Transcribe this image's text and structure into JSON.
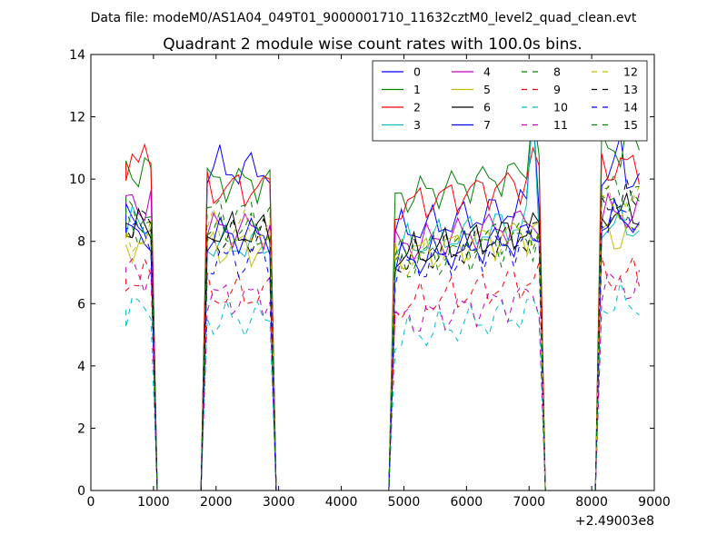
{
  "suptitle": "Data file: modeM0/AS1A04_049T01_9000001710_11632cztM0_level2_quad_clean.evt",
  "chart_data": {
    "type": "line",
    "title": "Quadrant 2 module wise count rates with 100.0s bins.",
    "xlabel": "",
    "ylabel": "",
    "xlim": [
      0,
      9000
    ],
    "ylim": [
      0,
      14
    ],
    "xticks": [
      0,
      1000,
      2000,
      3000,
      4000,
      5000,
      6000,
      7000,
      8000,
      9000
    ],
    "xtick_labels": [
      "0",
      "1000",
      "2000",
      "3000",
      "4000",
      "5000",
      "6000",
      "7000",
      "8000",
      "9000"
    ],
    "yticks": [
      0,
      2,
      4,
      6,
      8,
      10,
      12,
      14
    ],
    "ytick_labels": [
      "0",
      "2",
      "4",
      "6",
      "8",
      "10",
      "12",
      "14"
    ],
    "x_offset_label": "+2.49003e8",
    "grid": false,
    "legend_position": "top-right",
    "legend_columns": 4,
    "segments": [
      {
        "start": 560,
        "end": 1000
      },
      {
        "start": 1860,
        "end": 2860
      },
      {
        "start": 4860,
        "end": 7160
      },
      {
        "start": 8160,
        "end": 8760
      }
    ],
    "gap_x_points": [
      1060,
      1760,
      2960,
      4760,
      7260,
      8060
    ],
    "series": [
      {
        "name": "0",
        "color": "#0000ff",
        "style": "solid",
        "levels": [
          8.6,
          10.3,
          8.7,
          10.0
        ],
        "peaks": [
          {
            "x": 2060,
            "y": 11.1
          },
          {
            "x": 7060,
            "y": 12.2
          },
          {
            "x": 8460,
            "y": 11.4
          }
        ]
      },
      {
        "name": "1",
        "color": "#008000",
        "style": "solid",
        "levels": [
          10.3,
          9.9,
          9.8,
          10.9
        ],
        "peaks": [
          {
            "x": 7060,
            "y": 12.3
          },
          {
            "x": 8560,
            "y": 11.8
          }
        ]
      },
      {
        "name": "2",
        "color": "#ff0000",
        "style": "solid",
        "levels": [
          10.5,
          9.7,
          9.5,
          10.4
        ],
        "peaks": [
          {
            "x": 660,
            "y": 10.8
          },
          {
            "x": 7060,
            "y": 11.0
          }
        ]
      },
      {
        "name": "3",
        "color": "#00bfbf",
        "style": "solid",
        "levels": [
          8.5,
          7.9,
          8.2,
          8.5
        ],
        "peaks": [
          {
            "x": 7060,
            "y": 12.3
          }
        ]
      },
      {
        "name": "4",
        "color": "#bf00bf",
        "style": "solid",
        "levels": [
          9.2,
          8.4,
          8.2,
          8.9
        ],
        "peaks": [
          {
            "x": 660,
            "y": 9.5
          }
        ]
      },
      {
        "name": "5",
        "color": "#bfbf00",
        "style": "solid",
        "levels": [
          7.9,
          7.8,
          7.9,
          8.2
        ],
        "peaks": []
      },
      {
        "name": "6",
        "color": "#000000",
        "style": "solid",
        "levels": [
          8.4,
          8.3,
          7.9,
          8.9
        ],
        "peaks": []
      },
      {
        "name": "7",
        "color": "#0000ff",
        "style": "solid",
        "levels": [
          8.2,
          8.2,
          7.7,
          8.7
        ],
        "peaks": []
      },
      {
        "name": "8",
        "color": "#008000",
        "style": "dashed",
        "levels": [
          8.5,
          8.9,
          7.6,
          9.1
        ],
        "peaks": []
      },
      {
        "name": "9",
        "color": "#ff0000",
        "style": "dashed",
        "levels": [
          6.8,
          6.3,
          6.3,
          6.9
        ],
        "peaks": []
      },
      {
        "name": "10",
        "color": "#00bfbf",
        "style": "dashed",
        "levels": [
          5.8,
          5.5,
          5.3,
          6.0
        ],
        "peaks": []
      },
      {
        "name": "11",
        "color": "#bf00bf",
        "style": "dashed",
        "levels": [
          7.0,
          6.2,
          5.8,
          6.6
        ],
        "peaks": []
      },
      {
        "name": "12",
        "color": "#bfbf00",
        "style": "dashed",
        "levels": [
          8.1,
          8.4,
          7.7,
          9.2
        ],
        "peaks": []
      },
      {
        "name": "13",
        "color": "#000000",
        "style": "dashed",
        "levels": [
          8.6,
          8.1,
          7.7,
          9.3
        ],
        "peaks": []
      },
      {
        "name": "14",
        "color": "#0000ff",
        "style": "dashed",
        "levels": [
          8.3,
          7.4,
          7.5,
          8.8
        ],
        "peaks": []
      },
      {
        "name": "15",
        "color": "#008000",
        "style": "dashed",
        "levels": [
          8.9,
          8.3,
          7.9,
          9.6
        ],
        "peaks": []
      }
    ]
  }
}
